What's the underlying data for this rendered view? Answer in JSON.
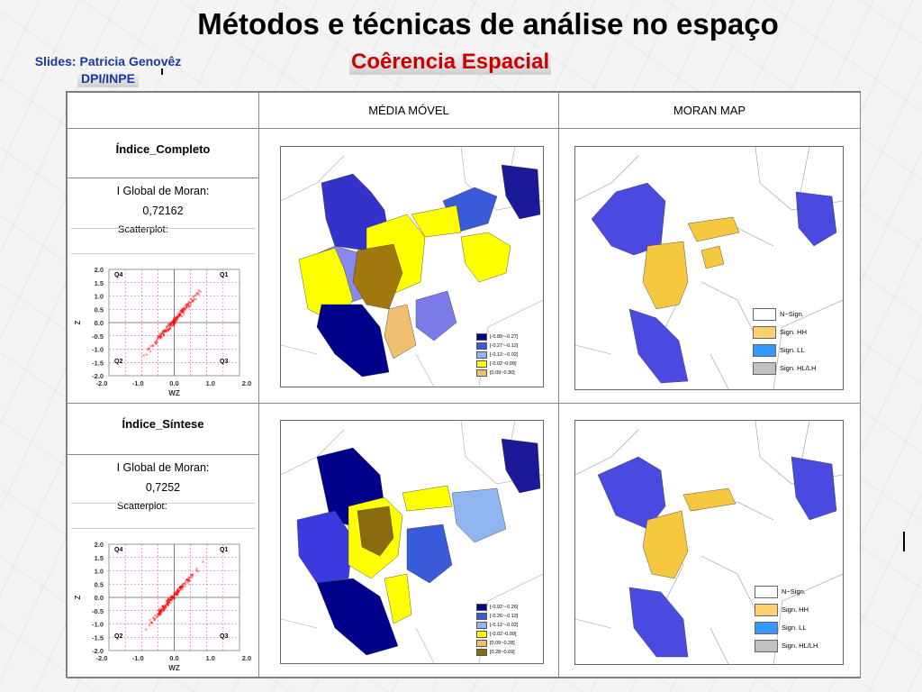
{
  "slide": {
    "title": "Métodos e técnicas de análise no espaço",
    "subtitle": "Coêrencia Espacial",
    "credit_line1": "Slides: Patricia Genovêz",
    "credit_line2": "DPI/INPE"
  },
  "table": {
    "header_col1": "MÉDIA MÓVEL",
    "header_col2": "MORAN MAP",
    "rows": [
      {
        "label": "Índice_Completo",
        "moran_label": "I Global de Moran:",
        "moran_value": "0,72162",
        "scatter_label": "Scatterplot:",
        "legend_mm": [
          "[-0.89~-0.27]",
          "[-0.27~-0.12]",
          "[-0.12~-0.02]",
          "[-0.02~0.09]",
          "[0.09~0.30]"
        ],
        "legend_moran": [
          "N~Sign.",
          "Sign. HH",
          "Sign. LL",
          "Sign. HL/LH"
        ]
      },
      {
        "label": "Índice_Síntese",
        "moran_label": "I Global de Moran:",
        "moran_value": "0,7252",
        "scatter_label": "Scatterplot:",
        "legend_mm": [
          "[-0.92~-0.26]",
          "[-0.26~-0.12]",
          "[-0.12~-0.02]",
          "[-0.02~0.09]",
          "[0.09~0.28]",
          "[0.28~0.69]"
        ],
        "legend_moran": [
          "N~Sign.",
          "Sign. HH",
          "Sign. LL",
          "Sign. HL/LH"
        ]
      }
    ]
  },
  "scatter": {
    "y_ticks": [
      "2.0",
      "1.5",
      "1.0",
      "0.5",
      "0.0",
      "-0.5",
      "-1.0",
      "-1.5",
      "-2.0"
    ],
    "x_ticks": [
      "-2.0",
      "-1.0",
      "0.0",
      "1.0",
      "2.0"
    ],
    "x_label": "WZ",
    "y_label": "Z",
    "quadrants": [
      "Q4",
      "Q1",
      "Q2",
      "Q3"
    ]
  },
  "colors": {
    "title_red": "#cc0000",
    "credit_blue": "#1a3a9a",
    "mm_classes": [
      "#00008b",
      "#3a5bd9",
      "#8fb6f0",
      "#ffff00",
      "#f0c070",
      "#8b6b10"
    ],
    "moran_classes": [
      "#ffffff",
      "#ffd070",
      "#3399ff",
      "#c0c0c0"
    ],
    "low_cluster": "#4a4ae0",
    "high_cluster": "#f5c840",
    "scatter_points": "#ff0000",
    "scatter_grid": "#ff44cc"
  }
}
